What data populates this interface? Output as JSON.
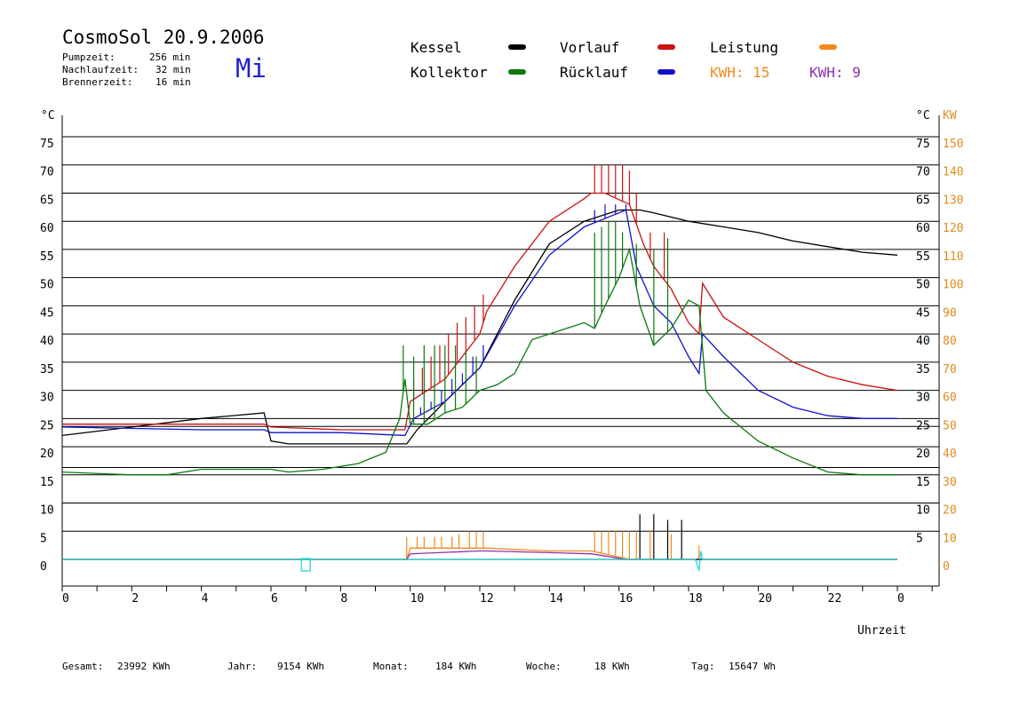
{
  "header": {
    "title": "CosmoSol 20.9.2006",
    "day": "Mi",
    "stats": [
      {
        "label": "Pumpzeit:",
        "value": "256 min"
      },
      {
        "label": "Nachlaufzeit:",
        "value": "32 min"
      },
      {
        "label": "Brennerzeit:",
        "value": "16 min"
      }
    ]
  },
  "legend": {
    "kessel": "Kessel",
    "kollektor": "Kollektor",
    "vorlauf": "Vorlauf",
    "ruecklauf": "Rücklauf",
    "leistung": "Leistung",
    "kwh1": "KWH: 15",
    "kwh2": "KWH: 9"
  },
  "footer": {
    "gesamt_label": "Gesamt:",
    "gesamt_value": "23992 KWh",
    "jahr_label": "Jahr:",
    "jahr_value": "9154 KWh",
    "monat_label": "Monat:",
    "monat_value": "184 KWh",
    "woche_label": "Woche:",
    "woche_value": "18 KWh",
    "tag_label": "Tag:",
    "tag_value": "15647 Wh"
  },
  "chart_data": {
    "type": "line",
    "xlabel": "Uhrzeit",
    "ylabel": "°C",
    "ylabel_right": "°C",
    "ylabel_right2": "KW",
    "xlim": [
      0,
      24
    ],
    "ylim": [
      -5,
      80
    ],
    "x_ticks": [
      "0",
      "2",
      "4",
      "6",
      "8",
      "10",
      "12",
      "14",
      "16",
      "18",
      "20",
      "22",
      "0"
    ],
    "y_ticks": [
      0,
      5,
      10,
      15,
      20,
      25,
      30,
      35,
      40,
      45,
      50,
      55,
      60,
      65,
      70,
      75
    ],
    "y_ticks_right": [
      5,
      10,
      15,
      20,
      25,
      30,
      35,
      40,
      45,
      50,
      55,
      60,
      65,
      70,
      75
    ],
    "y_ticks_kw": [
      0,
      10,
      20,
      30,
      40,
      50,
      60,
      70,
      80,
      90,
      100,
      110,
      120,
      130,
      140,
      150
    ],
    "grid_y": true,
    "colors": {
      "kessel": "#000000",
      "kollektor": "#0a7a0a",
      "vorlauf": "#cc1111",
      "ruecklauf": "#1111cc",
      "leistung": "#f08a1c",
      "purple": "#8f2fb0",
      "cyan": "#29d6d6",
      "kw_axis": "#e08a1c"
    },
    "series": [
      {
        "name": "Kessel",
        "key": "kessel",
        "color": "#000000",
        "points": [
          [
            0,
            22
          ],
          [
            2,
            23.5
          ],
          [
            4,
            25
          ],
          [
            5.8,
            26
          ],
          [
            6,
            21
          ],
          [
            6.5,
            20.5
          ],
          [
            8,
            20.5
          ],
          [
            9.9,
            20.5
          ],
          [
            10.2,
            23
          ],
          [
            11,
            28
          ],
          [
            12,
            34
          ],
          [
            13,
            46
          ],
          [
            14,
            56
          ],
          [
            15,
            60
          ],
          [
            16,
            62
          ],
          [
            16.6,
            62
          ],
          [
            17,
            61.5
          ],
          [
            18,
            60
          ],
          [
            19,
            59
          ],
          [
            20,
            58
          ],
          [
            21,
            56.5
          ],
          [
            22,
            55.5
          ],
          [
            23,
            54.5
          ],
          [
            24,
            54
          ]
        ]
      },
      {
        "name": "Vorlauf",
        "key": "vorlauf",
        "color": "#cc1111",
        "points": [
          [
            0,
            24
          ],
          [
            4,
            24
          ],
          [
            5.8,
            24
          ],
          [
            6,
            23.5
          ],
          [
            8,
            23
          ],
          [
            9.85,
            23
          ],
          [
            10,
            28
          ],
          [
            11,
            32
          ],
          [
            12,
            40
          ],
          [
            12.2,
            44
          ],
          [
            13,
            52
          ],
          [
            14,
            60
          ],
          [
            15,
            64
          ],
          [
            15.2,
            65
          ],
          [
            15.6,
            65
          ],
          [
            16.3,
            63
          ],
          [
            16.7,
            56
          ],
          [
            17,
            52
          ],
          [
            17.5,
            48
          ],
          [
            18,
            42
          ],
          [
            18.3,
            40
          ],
          [
            18.4,
            49
          ],
          [
            19,
            43
          ],
          [
            20,
            39
          ],
          [
            21,
            35
          ],
          [
            22,
            32.5
          ],
          [
            23,
            31
          ],
          [
            24,
            30
          ]
        ],
        "spikes": [
          [
            10.1,
            32
          ],
          [
            10.35,
            34
          ],
          [
            10.6,
            36
          ],
          [
            10.85,
            38
          ],
          [
            11.1,
            40
          ],
          [
            11.35,
            42
          ],
          [
            11.6,
            43
          ],
          [
            11.85,
            45
          ],
          [
            12.1,
            47
          ],
          [
            15.3,
            70
          ],
          [
            15.5,
            70
          ],
          [
            15.7,
            70
          ],
          [
            15.9,
            70
          ],
          [
            16.1,
            70
          ],
          [
            16.3,
            69
          ],
          [
            16.5,
            65
          ],
          [
            16.9,
            58
          ],
          [
            17.3,
            58
          ]
        ]
      },
      {
        "name": "Rücklauf",
        "key": "ruecklauf",
        "color": "#1111cc",
        "points": [
          [
            0,
            23.5
          ],
          [
            4,
            23
          ],
          [
            5.8,
            23
          ],
          [
            6,
            22.5
          ],
          [
            8,
            22.5
          ],
          [
            9.85,
            22
          ],
          [
            10.1,
            25
          ],
          [
            11,
            28
          ],
          [
            12,
            34
          ],
          [
            13,
            45
          ],
          [
            14,
            54
          ],
          [
            15,
            59
          ],
          [
            15.4,
            60
          ],
          [
            16.2,
            62
          ],
          [
            16.5,
            52
          ],
          [
            17,
            45
          ],
          [
            17.5,
            42
          ],
          [
            18,
            36
          ],
          [
            18.3,
            33
          ],
          [
            18.4,
            40
          ],
          [
            19,
            36
          ],
          [
            20,
            30
          ],
          [
            21,
            27
          ],
          [
            22,
            25.5
          ],
          [
            23,
            25
          ],
          [
            24,
            25
          ]
        ],
        "spikes": [
          [
            10.3,
            27
          ],
          [
            10.6,
            28
          ],
          [
            10.9,
            30
          ],
          [
            11.2,
            32
          ],
          [
            11.5,
            33
          ],
          [
            11.8,
            36
          ],
          [
            12.1,
            38
          ],
          [
            15.3,
            62
          ],
          [
            15.6,
            63
          ],
          [
            15.9,
            63
          ],
          [
            16.2,
            63
          ]
        ]
      },
      {
        "name": "Kollektor",
        "key": "kollektor",
        "color": "#0a7a0a",
        "points": [
          [
            0,
            15.5
          ],
          [
            2,
            15
          ],
          [
            3,
            15
          ],
          [
            3.5,
            15.5
          ],
          [
            4,
            16
          ],
          [
            6,
            16
          ],
          [
            6.5,
            15.5
          ],
          [
            7.5,
            16
          ],
          [
            8.5,
            17
          ],
          [
            9.3,
            19
          ],
          [
            9.7,
            25
          ],
          [
            9.85,
            32
          ],
          [
            10,
            24
          ],
          [
            10.5,
            24
          ],
          [
            11,
            26
          ],
          [
            11.5,
            27
          ],
          [
            12,
            30
          ],
          [
            12.5,
            31
          ],
          [
            13,
            33
          ],
          [
            13.5,
            39
          ],
          [
            14,
            40
          ],
          [
            14.5,
            41
          ],
          [
            15,
            42
          ],
          [
            15.3,
            41
          ],
          [
            15.6,
            45
          ],
          [
            16,
            50
          ],
          [
            16.3,
            55
          ],
          [
            16.6,
            45
          ],
          [
            17,
            38
          ],
          [
            17.5,
            41
          ],
          [
            18,
            46
          ],
          [
            18.3,
            45
          ],
          [
            18.5,
            30
          ],
          [
            19,
            26
          ],
          [
            20,
            21
          ],
          [
            21,
            18
          ],
          [
            22,
            15.5
          ],
          [
            23,
            15
          ],
          [
            24,
            15
          ]
        ],
        "spikes": [
          [
            9.8,
            38
          ],
          [
            10.1,
            36
          ],
          [
            10.4,
            38
          ],
          [
            10.7,
            38
          ],
          [
            11.0,
            38
          ],
          [
            11.3,
            38
          ],
          [
            11.6,
            37
          ],
          [
            11.9,
            36
          ],
          [
            15.3,
            58
          ],
          [
            15.5,
            59
          ],
          [
            15.7,
            60
          ],
          [
            15.9,
            60
          ],
          [
            16.1,
            58
          ],
          [
            16.5,
            56
          ],
          [
            17.0,
            55
          ],
          [
            17.4,
            57
          ]
        ]
      },
      {
        "name": "Leistung",
        "key": "leistung",
        "color": "#f08a1c",
        "points": [
          [
            0,
            0
          ],
          [
            9.9,
            0
          ],
          [
            10,
            2
          ],
          [
            12,
            2
          ],
          [
            12.2,
            2
          ],
          [
            14,
            1.5
          ],
          [
            15.2,
            1.5
          ],
          [
            16.3,
            0
          ],
          [
            24,
            0
          ]
        ],
        "spikes": [
          [
            9.9,
            4
          ],
          [
            10.2,
            4
          ],
          [
            10.4,
            4
          ],
          [
            10.7,
            4
          ],
          [
            10.9,
            4
          ],
          [
            11.2,
            4
          ],
          [
            11.4,
            4.5
          ],
          [
            11.7,
            5
          ],
          [
            11.9,
            5
          ],
          [
            12.1,
            5
          ],
          [
            15.3,
            5
          ],
          [
            15.5,
            5
          ],
          [
            15.7,
            5
          ],
          [
            15.9,
            5
          ],
          [
            16.1,
            5
          ],
          [
            16.3,
            5
          ],
          [
            16.5,
            5
          ],
          [
            16.9,
            5
          ],
          [
            17.5,
            4.5
          ],
          [
            18.3,
            2.5
          ]
        ]
      },
      {
        "name": "",
        "key": "purple",
        "color": "#8f2fb0",
        "points": [
          [
            0,
            0
          ],
          [
            9.9,
            0
          ],
          [
            10,
            1
          ],
          [
            12,
            1.5
          ],
          [
            12.2,
            1.5
          ],
          [
            14,
            1.2
          ],
          [
            15.2,
            1
          ],
          [
            16.2,
            0
          ],
          [
            24,
            0
          ]
        ]
      },
      {
        "name": "",
        "key": "kessel_pump",
        "color": "#000000",
        "points": [
          [
            0,
            0
          ],
          [
            24,
            0
          ]
        ],
        "spikes": [
          [
            16.6,
            8
          ],
          [
            17,
            8
          ],
          [
            17.4,
            7
          ],
          [
            17.8,
            7
          ]
        ]
      },
      {
        "name": "",
        "key": "cyan",
        "color": "#29d6d6",
        "points": [
          [
            0,
            0
          ],
          [
            18.2,
            0
          ],
          [
            18.3,
            -2
          ],
          [
            18.35,
            1.5
          ],
          [
            18.4,
            0
          ],
          [
            24,
            0
          ]
        ],
        "markers": [
          [
            7,
            -1
          ]
        ]
      }
    ]
  }
}
